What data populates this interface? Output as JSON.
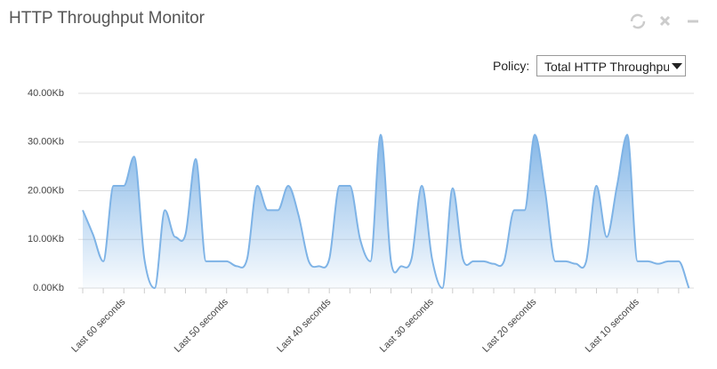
{
  "header": {
    "title": "HTTP Throughput Monitor"
  },
  "policy": {
    "label": "Policy:",
    "selected": "Total HTTP Throughput"
  },
  "chart_data": {
    "type": "area",
    "categories": [
      null,
      null,
      null,
      null,
      "Last 60 seconds",
      null,
      null,
      null,
      null,
      null,
      null,
      null,
      null,
      null,
      "Last 50 seconds",
      null,
      null,
      null,
      null,
      null,
      null,
      null,
      null,
      null,
      "Last 40 seconds",
      null,
      null,
      null,
      null,
      null,
      null,
      null,
      null,
      null,
      "Last 30 seconds",
      null,
      null,
      null,
      null,
      null,
      null,
      null,
      null,
      null,
      "Last 20 seconds",
      null,
      null,
      null,
      null,
      null,
      null,
      null,
      null,
      null,
      "Last 10 seconds",
      null,
      null,
      null,
      null,
      null
    ],
    "series": [
      {
        "name": "Total HTTP Throughput",
        "color": "#7eb3e6",
        "values": [
          16,
          11,
          5.5,
          21,
          21,
          27,
          6,
          0,
          16,
          10.5,
          11,
          26.5,
          5.5,
          5.5,
          5.5,
          4.5,
          6,
          21,
          16,
          16,
          21,
          15,
          5.5,
          4.5,
          6,
          21,
          21,
          10,
          5.5,
          31.5,
          5.5,
          4.5,
          6,
          21,
          6,
          0,
          20.5,
          6,
          5.5,
          5.5,
          5,
          5.5,
          16,
          16,
          31.5,
          20,
          5.5,
          5.5,
          5,
          5.5,
          21,
          10.5,
          21,
          31.5,
          5.5,
          5.5,
          5,
          5.5,
          5.5,
          0
        ]
      }
    ],
    "ylim": [
      0,
      40
    ],
    "yticks": [
      {
        "value": 0,
        "label": "0.00Kb"
      },
      {
        "value": 10,
        "label": "10.00Kb"
      },
      {
        "value": 20,
        "label": "20.00Kb"
      },
      {
        "value": 30,
        "label": "30.00Kb"
      },
      {
        "value": 40,
        "label": "40.00Kb"
      }
    ],
    "grid": true
  }
}
